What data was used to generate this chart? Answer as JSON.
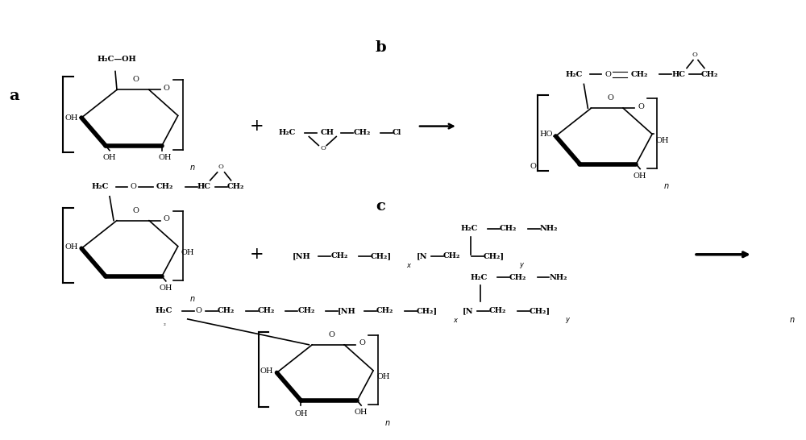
{
  "background": "#ffffff",
  "fig_width": 10.0,
  "fig_height": 5.46,
  "dpi": 100,
  "label_a": "a",
  "label_b": "b",
  "label_c": "c"
}
